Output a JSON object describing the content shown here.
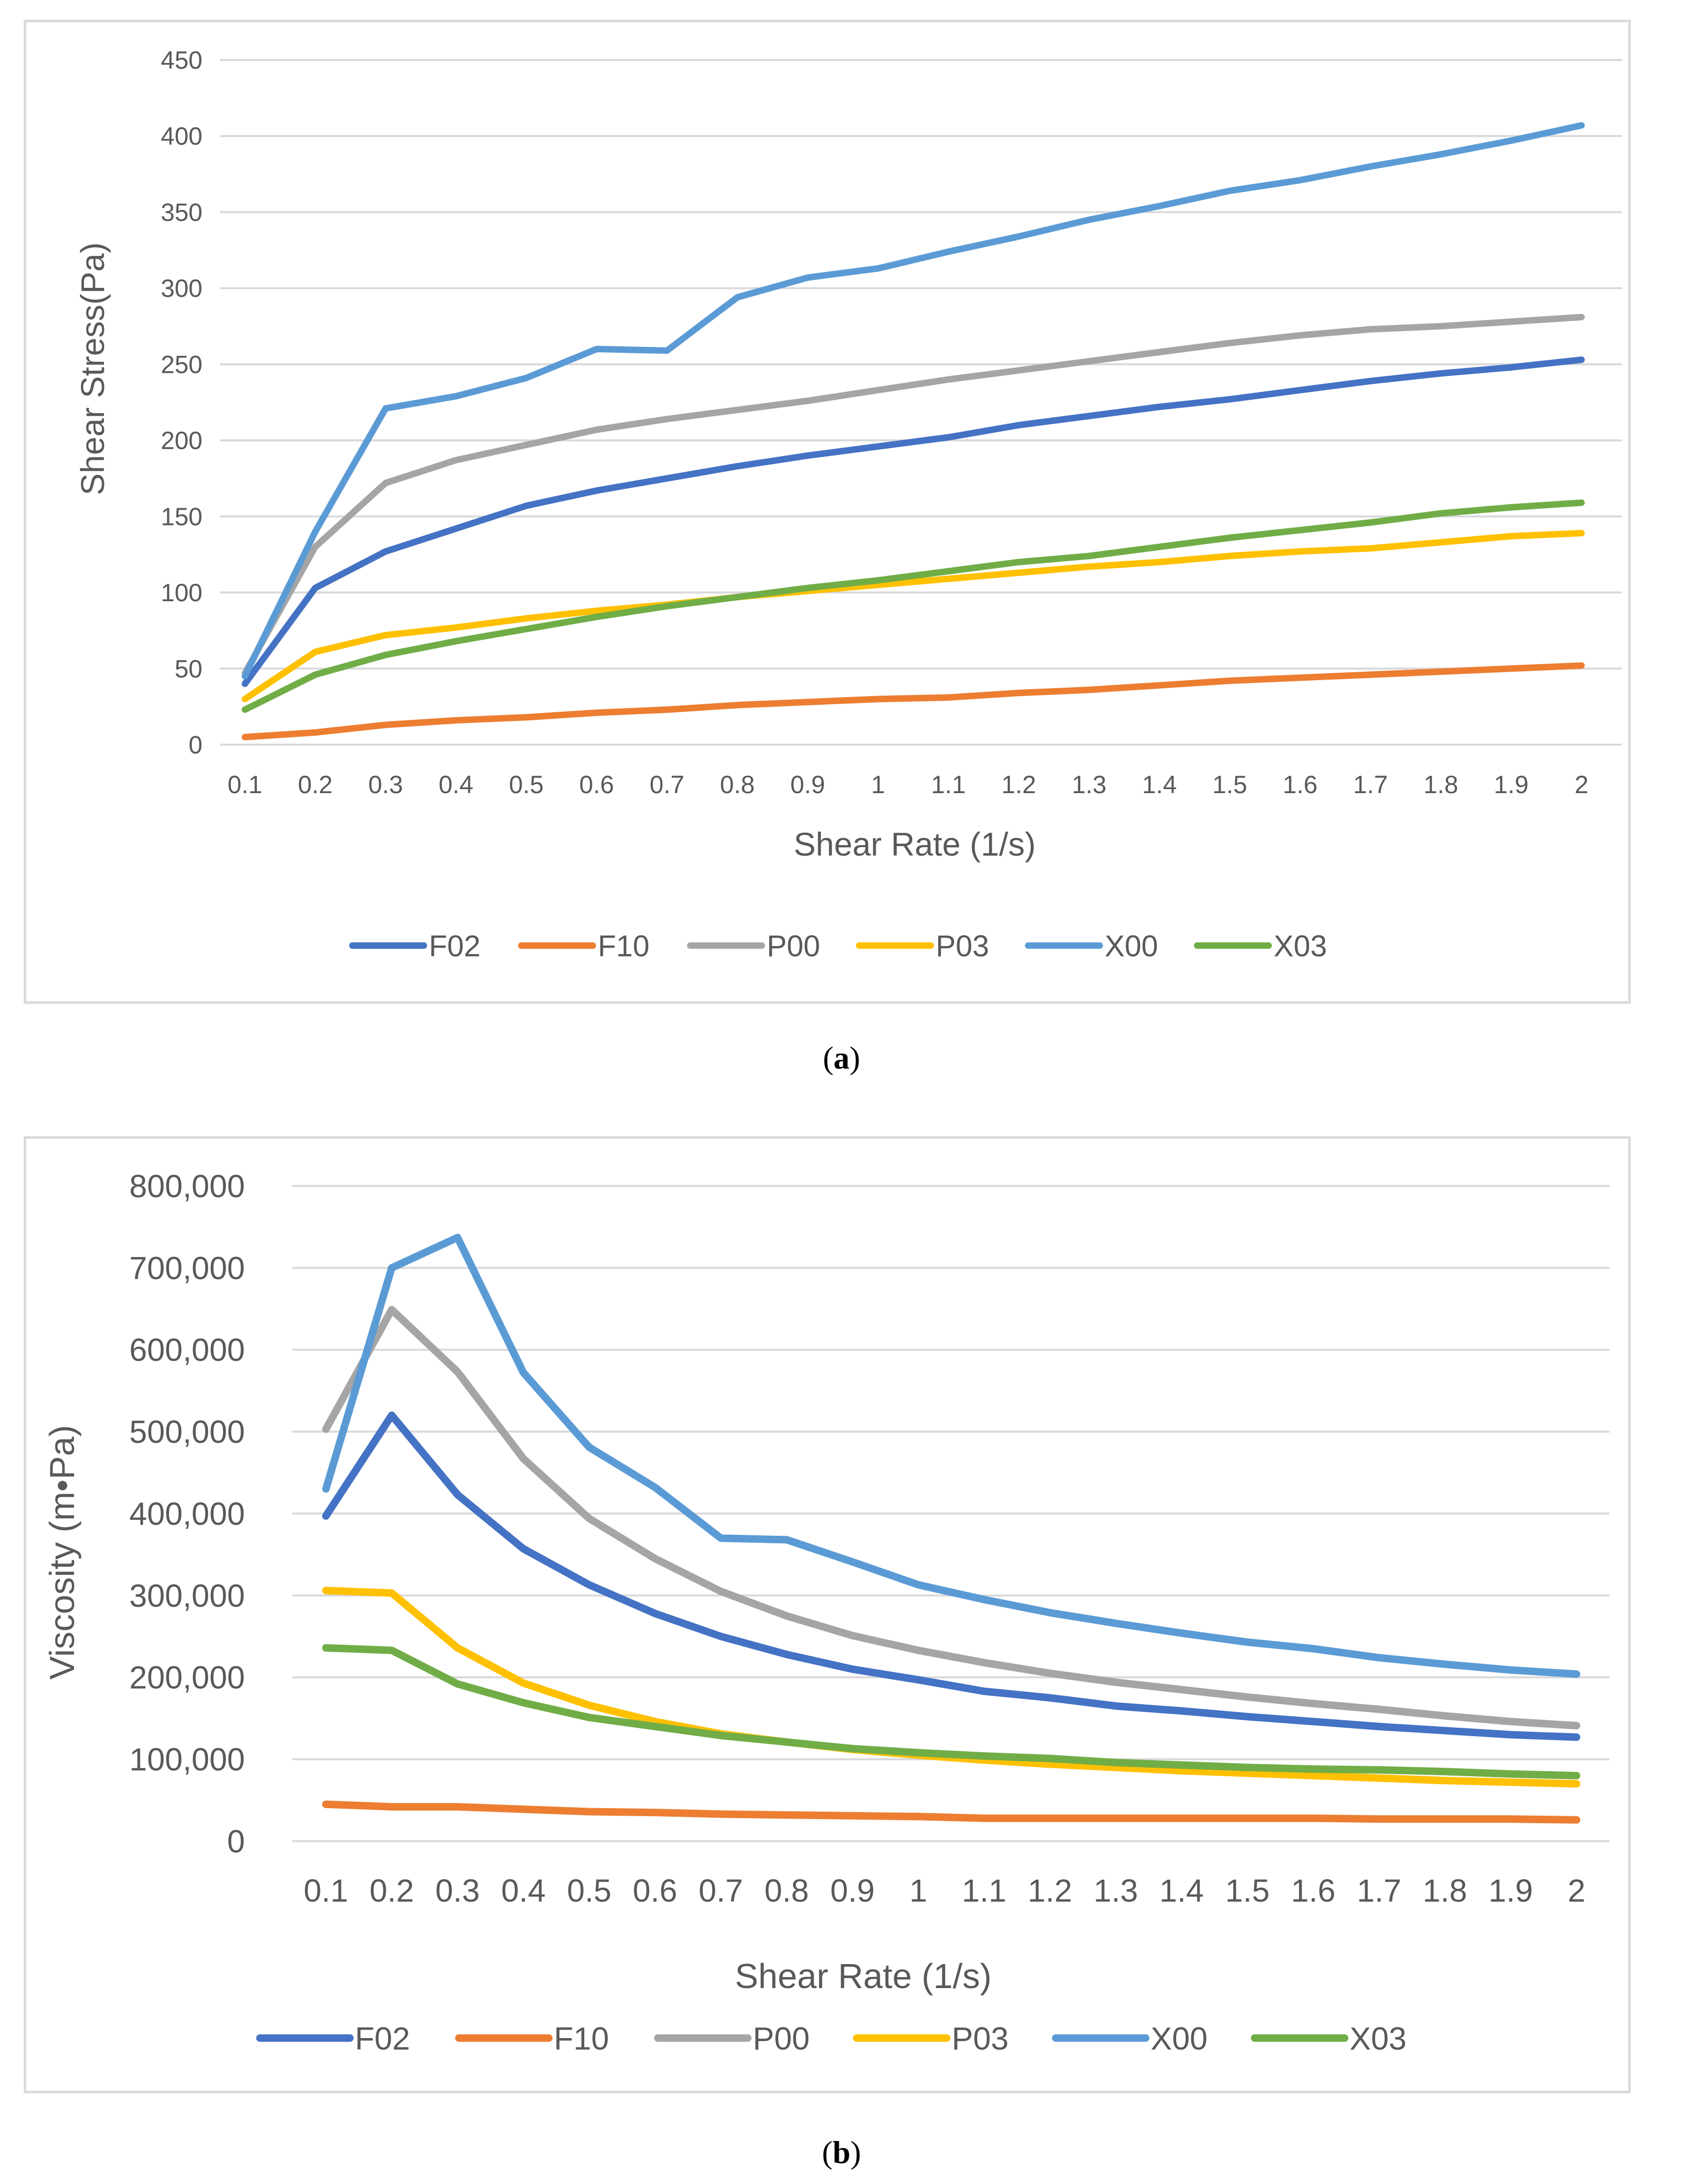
{
  "chart_data": [
    {
      "id": "a",
      "type": "line",
      "title": "",
      "xlabel": "Shear Rate (1/s)",
      "ylabel": "Shear Stress(Pa)",
      "ylim": [
        0,
        450
      ],
      "yticks": [
        0,
        50,
        100,
        150,
        200,
        250,
        300,
        350,
        400,
        450
      ],
      "ytick_labels": [
        "0",
        "50",
        "100",
        "150",
        "200",
        "250",
        "300",
        "350",
        "400",
        "450"
      ],
      "categories": [
        "0.1",
        "0.2",
        "0.3",
        "0.4",
        "0.5",
        "0.6",
        "0.7",
        "0.8",
        "0.9",
        "1",
        "1.1",
        "1.2",
        "1.3",
        "1.4",
        "1.5",
        "1.6",
        "1.7",
        "1.8",
        "1.9",
        "2"
      ],
      "grid": true,
      "legend_position": "bottom",
      "series": [
        {
          "name": "F02",
          "color": "#4472C4",
          "values": [
            40,
            103,
            127,
            142,
            157,
            167,
            175,
            183,
            190,
            196,
            202,
            210,
            216,
            222,
            227,
            233,
            239,
            244,
            248,
            253
          ]
        },
        {
          "name": "F10",
          "color": "#ED7D31",
          "values": [
            5,
            8,
            13,
            16,
            18,
            21,
            23,
            26,
            28,
            30,
            31,
            34,
            36,
            39,
            42,
            44,
            46,
            48,
            50,
            52
          ]
        },
        {
          "name": "P00",
          "color": "#A5A5A5",
          "values": [
            47,
            130,
            172,
            187,
            197,
            207,
            214,
            220,
            226,
            233,
            240,
            246,
            252,
            258,
            264,
            269,
            273,
            275,
            278,
            281
          ]
        },
        {
          "name": "P03",
          "color": "#FFC000",
          "values": [
            30,
            61,
            72,
            77,
            83,
            88,
            92,
            97,
            101,
            105,
            109,
            113,
            117,
            120,
            124,
            127,
            129,
            133,
            137,
            139
          ]
        },
        {
          "name": "X00",
          "color": "#5B9BD5",
          "values": [
            45,
            140,
            221,
            229,
            241,
            260,
            259,
            294,
            307,
            313,
            324,
            334,
            345,
            354,
            364,
            371,
            380,
            388,
            397,
            407
          ]
        },
        {
          "name": "X03",
          "color": "#70AD47",
          "values": [
            23,
            46,
            59,
            68,
            76,
            84,
            91,
            97,
            103,
            108,
            114,
            120,
            124,
            130,
            136,
            141,
            146,
            152,
            156,
            159
          ]
        }
      ]
    },
    {
      "id": "b",
      "type": "line",
      "title": "",
      "xlabel": "Shear Rate (1/s)",
      "ylabel": "Viscosity (m•Pa)",
      "ylim": [
        0,
        800000
      ],
      "yticks": [
        0,
        100000,
        200000,
        300000,
        400000,
        500000,
        600000,
        700000,
        800000
      ],
      "ytick_labels": [
        "0",
        "100,000",
        "200,000",
        "300,000",
        "400,000",
        "500,000",
        "600,000",
        "700,000",
        "800,000"
      ],
      "categories": [
        "0.1",
        "0.2",
        "0.3",
        "0.4",
        "0.5",
        "0.6",
        "0.7",
        "0.8",
        "0.9",
        "1",
        "1.1",
        "1.2",
        "1.3",
        "1.4",
        "1.5",
        "1.6",
        "1.7",
        "1.8",
        "1.9",
        "2"
      ],
      "grid": true,
      "legend_position": "bottom",
      "series": [
        {
          "name": "F02",
          "color": "#4472C4",
          "values": [
            397000,
            520000,
            423000,
            357000,
            313000,
            278000,
            250000,
            228000,
            210000,
            197000,
            183000,
            175000,
            165000,
            159000,
            152000,
            146000,
            140000,
            135000,
            130000,
            127000
          ]
        },
        {
          "name": "F10",
          "color": "#ED7D31",
          "values": [
            45000,
            42000,
            42000,
            39000,
            36000,
            35000,
            33000,
            32000,
            31000,
            30000,
            28000,
            28000,
            28000,
            28000,
            28000,
            28000,
            27000,
            27000,
            27000,
            26000
          ]
        },
        {
          "name": "P00",
          "color": "#A5A5A5",
          "values": [
            503000,
            649000,
            573000,
            467000,
            394000,
            345000,
            305000,
            275000,
            251000,
            233000,
            218000,
            205000,
            194000,
            185000,
            176000,
            168000,
            161000,
            153000,
            146000,
            141000
          ]
        },
        {
          "name": "P03",
          "color": "#FFC000",
          "values": [
            306000,
            303000,
            236000,
            193000,
            166000,
            146000,
            131000,
            121000,
            112000,
            105000,
            99000,
            94000,
            90000,
            86000,
            83000,
            80000,
            77000,
            74000,
            72000,
            70000
          ]
        },
        {
          "name": "X00",
          "color": "#5B9BD5",
          "values": [
            430000,
            700000,
            737000,
            572000,
            481000,
            432000,
            370000,
            368000,
            341000,
            313000,
            295000,
            279000,
            266000,
            254000,
            243000,
            235000,
            224000,
            216000,
            209000,
            204000
          ]
        },
        {
          "name": "X03",
          "color": "#70AD47",
          "values": [
            236000,
            233000,
            192000,
            169000,
            151000,
            140000,
            129000,
            121000,
            113000,
            108000,
            104000,
            101000,
            96000,
            93000,
            90000,
            88000,
            87000,
            85000,
            82000,
            80000
          ]
        }
      ]
    }
  ],
  "captions": {
    "a": "a",
    "b": "b"
  }
}
